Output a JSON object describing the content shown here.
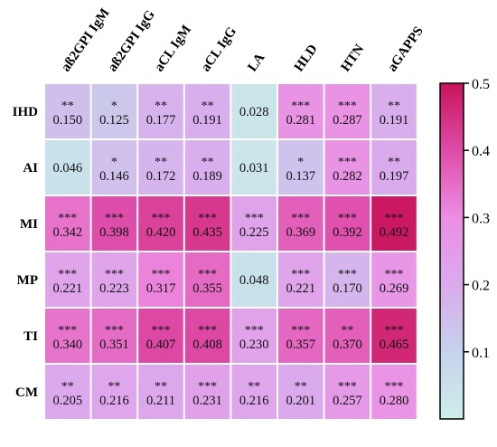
{
  "chart_data": {
    "type": "heatmap",
    "columns": [
      "aß2GPI IgM",
      "aß2GPI IgG",
      "aCL IgM",
      "aCL IgG",
      "LA",
      "HLD",
      "HTN",
      "aGAPPS"
    ],
    "rows": [
      "IHD",
      "AI",
      "MI",
      "MP",
      "TI",
      "CM"
    ],
    "values": [
      [
        0.15,
        0.125,
        0.177,
        0.191,
        0.028,
        0.281,
        0.287,
        0.191
      ],
      [
        0.046,
        0.146,
        0.172,
        0.189,
        0.031,
        0.137,
        0.282,
        0.197
      ],
      [
        0.342,
        0.398,
        0.42,
        0.435,
        0.225,
        0.369,
        0.392,
        0.492
      ],
      [
        0.221,
        0.223,
        0.317,
        0.355,
        0.048,
        0.221,
        0.17,
        0.269
      ],
      [
        0.34,
        0.351,
        0.407,
        0.408,
        0.23,
        0.357,
        0.37,
        0.465
      ],
      [
        0.205,
        0.216,
        0.211,
        0.231,
        0.216,
        0.201,
        0.257,
        0.28
      ]
    ],
    "value_labels": [
      [
        "0.150",
        "0.125",
        "0.177",
        "0.191",
        "0.028",
        "0.281",
        "0.287",
        "0.191"
      ],
      [
        "0.046",
        "0.146",
        "0.172",
        "0.189",
        "0.031",
        "0.137",
        "0.282",
        "0.197"
      ],
      [
        "0.342",
        "0.398",
        "0.420",
        "0.435",
        "0.225",
        "0.369",
        "0.392",
        "0.492"
      ],
      [
        "0.221",
        "0.223",
        "0.317",
        "0.355",
        "0.048",
        "0.221",
        "0.170",
        "0.269"
      ],
      [
        "0.340",
        "0.351",
        "0.407",
        "0.408",
        "0.230",
        "0.357",
        "0.370",
        "0.465"
      ],
      [
        "0.205",
        "0.216",
        "0.211",
        "0.231",
        "0.216",
        "0.201",
        "0.257",
        "0.280"
      ]
    ],
    "significance": [
      [
        "**",
        "*",
        "**",
        "**",
        "",
        "***",
        "***",
        "**"
      ],
      [
        "",
        "*",
        "**",
        "**",
        "",
        "*",
        "***",
        "**"
      ],
      [
        "***",
        "***",
        "***",
        "***",
        "***",
        "***",
        "***",
        "***"
      ],
      [
        "***",
        "***",
        "***",
        "***",
        "",
        "***",
        "***",
        "***"
      ],
      [
        "***",
        "***",
        "***",
        "***",
        "***",
        "***",
        "**",
        "***"
      ],
      [
        "**",
        "**",
        "**",
        "***",
        "**",
        "**",
        "***",
        "***"
      ]
    ],
    "colorbar": {
      "range": [
        0,
        0.5
      ],
      "ticks": [
        "0.1",
        "0.2",
        "0.3",
        "0.4",
        "0.5"
      ],
      "colors": [
        "#cdeeea",
        "#c5d2ec",
        "#dbaaec",
        "#ec8ee3",
        "#de4ca8",
        "#c8145c"
      ],
      "placement": "right"
    },
    "grid": true
  }
}
